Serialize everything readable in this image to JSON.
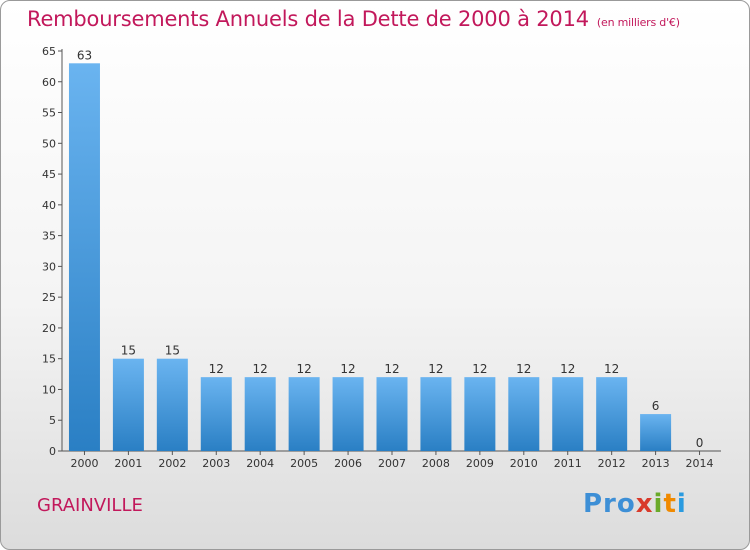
{
  "title": "Remboursements Annuels de la Dette de 2000 à 2014",
  "unit": "(en milliers d'€)",
  "commune": "GRAINVILLE",
  "logo": {
    "p1": "Pro",
    "p2": "x",
    "p3": "i",
    "p4": "t",
    "p5": "i"
  },
  "colors": {
    "title": "#c2185b",
    "bar_top": "#6ab4f0",
    "bar_bottom": "#2a7fc4"
  },
  "chart_data": {
    "type": "bar",
    "title": "Remboursements Annuels de la Dette de 2000 à 2014",
    "xlabel": "",
    "ylabel": "",
    "categories": [
      "2000",
      "2001",
      "2002",
      "2003",
      "2004",
      "2005",
      "2006",
      "2007",
      "2008",
      "2009",
      "2010",
      "2011",
      "2012",
      "2013",
      "2014"
    ],
    "values": [
      63,
      15,
      15,
      12,
      12,
      12,
      12,
      12,
      12,
      12,
      12,
      12,
      12,
      6,
      0
    ],
    "ylim": [
      0,
      65
    ],
    "yticks": [
      0,
      5,
      10,
      15,
      20,
      25,
      30,
      35,
      40,
      45,
      50,
      55,
      60,
      65
    ],
    "grid": false,
    "legend": "none"
  }
}
